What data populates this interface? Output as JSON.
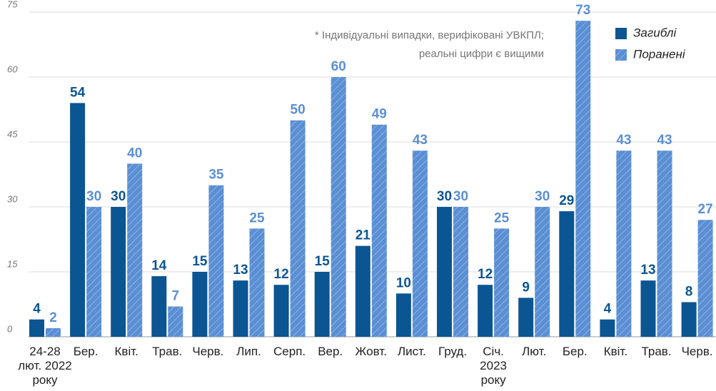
{
  "chart_data": {
    "type": "bar",
    "annotation": [
      "* Індивідуальні випадки, верифіковані УВКПЛ;",
      "реальні цифри є вищими"
    ],
    "categories": [
      "24-28\nлют. 2022\nроку",
      "Бер.",
      "Квіт.",
      "Трав.",
      "Черв.",
      "Лип.",
      "Серп.",
      "Вер.",
      "Жовт.",
      "Лист.",
      "Груд.",
      "Січ.\n2023\nроку",
      "Лют.",
      "Бер.",
      "Квіт.",
      "Трав.",
      "Черв."
    ],
    "series": [
      {
        "name": "Загиблі",
        "color": "#0b5592",
        "values": [
          4,
          54,
          30,
          14,
          15,
          13,
          12,
          15,
          21,
          10,
          30,
          12,
          9,
          29,
          4,
          13,
          8
        ]
      },
      {
        "name": "Поранені",
        "color": "#5b8fd4",
        "hatched": true,
        "values": [
          2,
          30,
          40,
          7,
          35,
          25,
          50,
          60,
          49,
          43,
          30,
          25,
          30,
          73,
          43,
          43,
          27
        ]
      }
    ],
    "ylim": [
      0,
      75
    ],
    "yticks": [
      0,
      15,
      30,
      45,
      60,
      75
    ],
    "grid": true,
    "legend": "top-right"
  }
}
